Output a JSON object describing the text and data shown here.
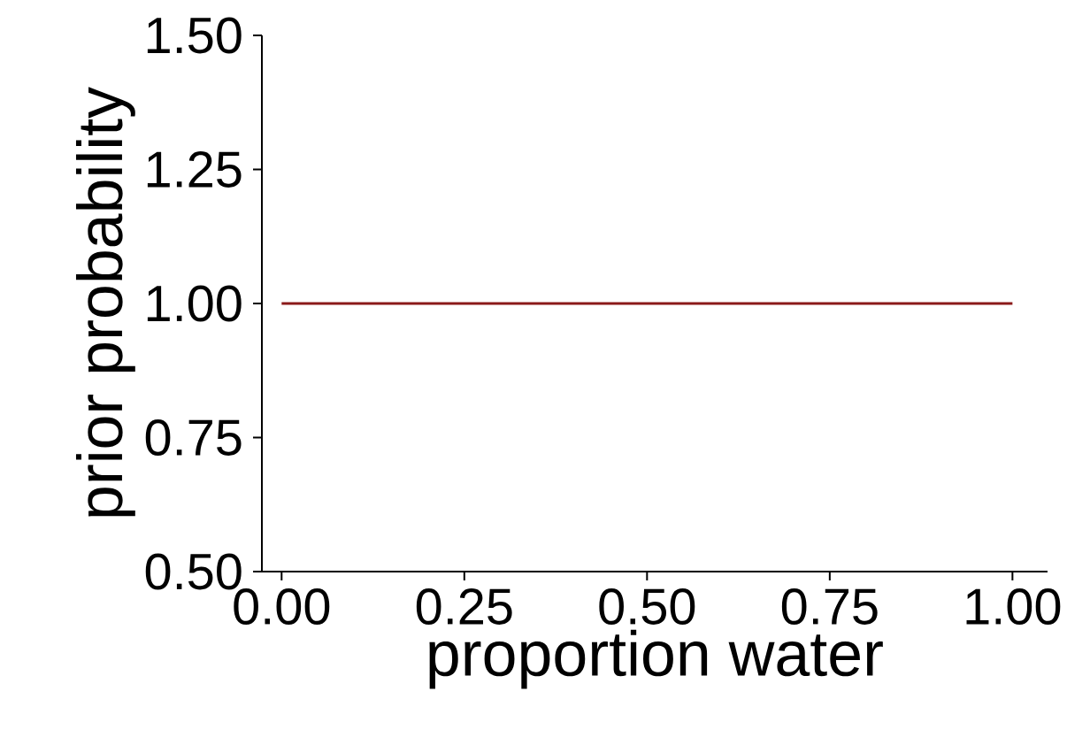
{
  "chart_data": {
    "type": "line",
    "xlabel": "proportion water",
    "ylabel": "prior probability",
    "x": [
      0,
      1
    ],
    "values": [
      1,
      1
    ],
    "color": "#8b1a1a",
    "xlim": [
      -0.027,
      1.048
    ],
    "ylim": [
      0.5,
      1.5
    ],
    "xticks": [
      {
        "value": 0,
        "label": "0.00"
      },
      {
        "value": 0.25,
        "label": "0.25"
      },
      {
        "value": 0.5,
        "label": "0.50"
      },
      {
        "value": 0.75,
        "label": "0.75"
      },
      {
        "value": 1,
        "label": "1.00"
      }
    ],
    "yticks": [
      {
        "value": 0.5,
        "label": "0.50"
      },
      {
        "value": 0.75,
        "label": "0.75"
      },
      {
        "value": 1,
        "label": "1.00"
      },
      {
        "value": 1.25,
        "label": "1.25"
      },
      {
        "value": 1.5,
        "label": "1.50"
      }
    ]
  }
}
